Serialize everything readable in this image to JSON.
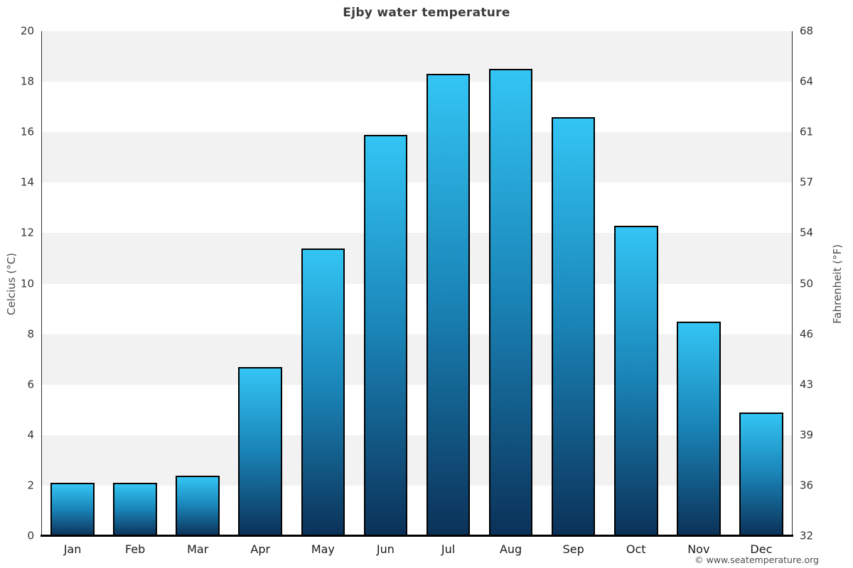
{
  "page": {
    "footer_credit": "© www.seatemperature.org"
  },
  "chart_data": {
    "type": "bar",
    "title": "Ejby water temperature",
    "categories": [
      "Jan",
      "Feb",
      "Mar",
      "Apr",
      "May",
      "Jun",
      "Jul",
      "Aug",
      "Sep",
      "Oct",
      "Nov",
      "Dec"
    ],
    "values": [
      2.1,
      2.1,
      2.4,
      6.7,
      11.4,
      15.9,
      18.3,
      18.5,
      16.6,
      12.3,
      8.5,
      4.9
    ],
    "ylabel_left": "Celcius (°C)",
    "ylabel_right": "Fahrenheit (°F)",
    "ylim_celsius": [
      0,
      20
    ],
    "yticks_celsius": [
      0,
      2,
      4,
      6,
      8,
      10,
      12,
      14,
      16,
      18,
      20
    ],
    "yticks_fahrenheit": [
      32,
      36,
      39,
      43,
      46,
      50,
      54,
      57,
      61,
      64,
      68
    ],
    "grid": "alternating horizontal bands every 2°C, shaded band from 2-4, 6-8, 10-12, 14-16, 18-20",
    "legend": "none",
    "colors": {
      "bar_gradient_top": "#33c5f4",
      "bar_gradient_mid": "#1a85b8",
      "bar_gradient_bottom": "#0b3158",
      "bar_border": "#000000",
      "band_shaded": "#f2f2f2",
      "band_plain": "#ffffff",
      "title_text": "#3c3c3c",
      "axis_text": "#333333"
    }
  }
}
